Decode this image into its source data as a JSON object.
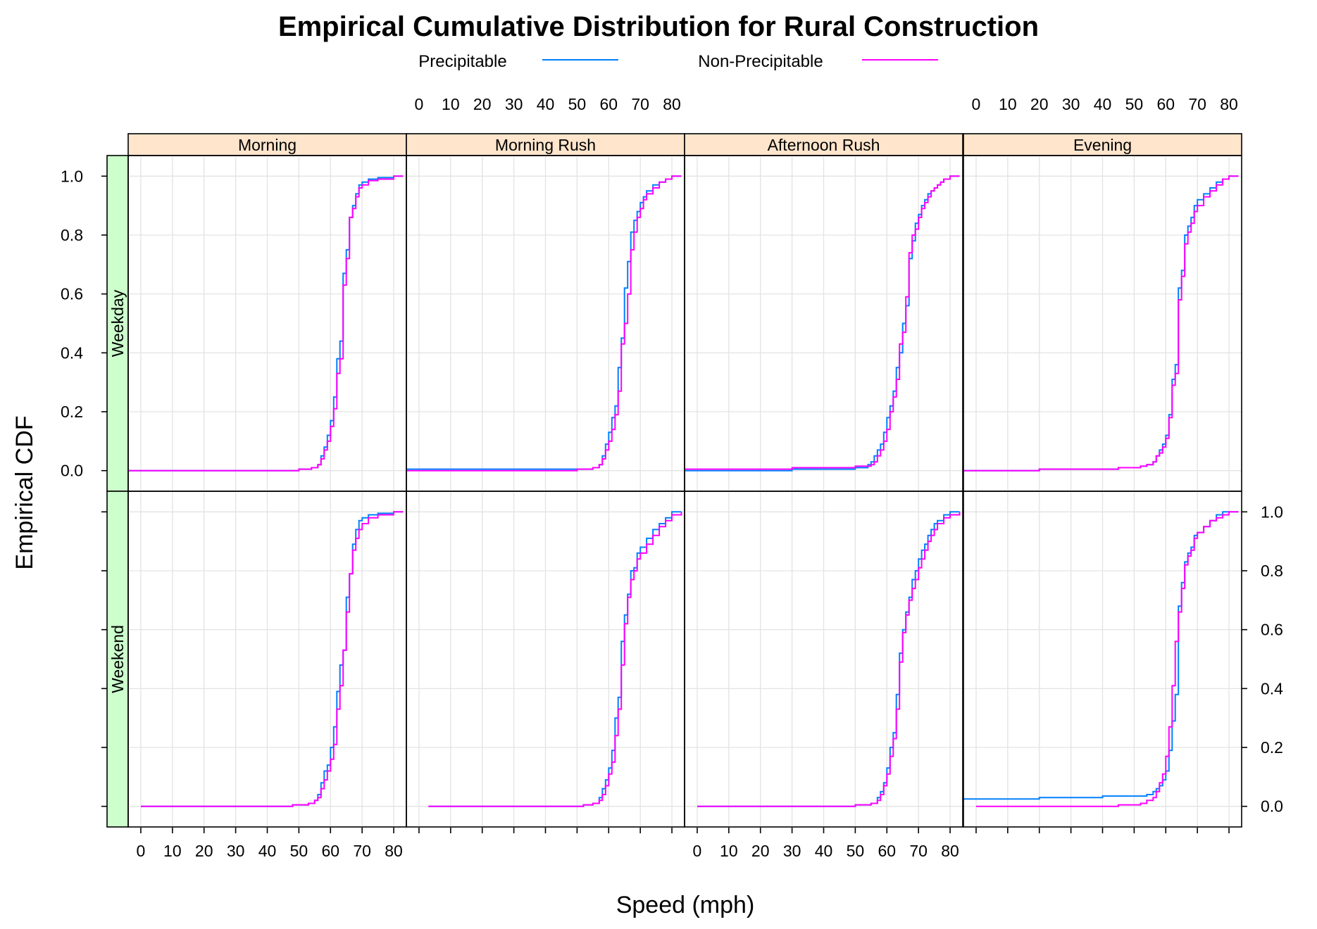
{
  "chart_data": {
    "type": "line",
    "subtype": "ecdf-step-trellis",
    "title": "Empirical Cumulative Distribution for Rural Construction",
    "xlabel": "Speed (mph)",
    "ylabel": "Empirical CDF",
    "xlim": [
      -4,
      84
    ],
    "ylim": [
      -0.07,
      1.07
    ],
    "xticks": [
      0,
      10,
      20,
      30,
      40,
      50,
      60,
      70,
      80
    ],
    "yticks": [
      0.0,
      0.2,
      0.4,
      0.6,
      0.8,
      1.0
    ],
    "grid": true,
    "legend_position": "top",
    "series": [
      {
        "name": "Precipitable",
        "color": "#0080ff"
      },
      {
        "name": "Non-Precipitable",
        "color": "#ff00ff"
      }
    ],
    "columns": [
      "Morning",
      "Morning Rush",
      "Afternoon Rush",
      "Evening"
    ],
    "rows": [
      "Weekday",
      "Weekend"
    ],
    "strip_colors": {
      "columns": "#ffe5cc",
      "rows": "#ccffcc"
    },
    "panels": [
      {
        "row": "Weekday",
        "column": "Morning",
        "series": [
          {
            "name": "Precipitable",
            "x": [
              -4,
              35,
              50,
              54,
              56,
              57,
              58,
              59,
              60,
              61,
              62,
              63,
              64,
              65,
              66,
              67,
              68,
              69,
              70,
              72,
              75,
              80,
              83
            ],
            "y": [
              0.0,
              0.0,
              0.005,
              0.01,
              0.02,
              0.05,
              0.08,
              0.12,
              0.17,
              0.25,
              0.38,
              0.44,
              0.67,
              0.75,
              0.86,
              0.9,
              0.94,
              0.97,
              0.98,
              0.99,
              0.995,
              1.0,
              1.0
            ]
          },
          {
            "name": "Non-Precipitable",
            "x": [
              -4,
              40,
              50,
              54,
              56,
              57,
              58,
              59,
              60,
              61,
              62,
              63,
              64,
              65,
              66,
              67,
              68,
              69,
              70,
              72,
              75,
              80,
              83
            ],
            "y": [
              0.0,
              0.0,
              0.005,
              0.01,
              0.02,
              0.04,
              0.07,
              0.1,
              0.15,
              0.21,
              0.33,
              0.38,
              0.63,
              0.72,
              0.86,
              0.89,
              0.93,
              0.96,
              0.97,
              0.985,
              0.99,
              1.0,
              1.0
            ]
          }
        ]
      },
      {
        "row": "Weekday",
        "column": "Morning Rush",
        "series": [
          {
            "name": "Precipitable",
            "x": [
              -4,
              50,
              55,
              57,
              58,
              59,
              60,
              61,
              62,
              63,
              64,
              65,
              66,
              67,
              68,
              69,
              70,
              71,
              72,
              74,
              76,
              78,
              80,
              83
            ],
            "y": [
              0.005,
              0.005,
              0.01,
              0.02,
              0.05,
              0.09,
              0.13,
              0.18,
              0.22,
              0.35,
              0.45,
              0.62,
              0.71,
              0.81,
              0.85,
              0.88,
              0.91,
              0.93,
              0.95,
              0.97,
              0.98,
              0.99,
              1.0,
              1.0
            ]
          },
          {
            "name": "Non-Precipitable",
            "x": [
              -4,
              50,
              55,
              57,
              58,
              59,
              60,
              61,
              62,
              63,
              64,
              65,
              66,
              67,
              68,
              69,
              70,
              71,
              72,
              74,
              76,
              78,
              80,
              83
            ],
            "y": [
              0.0,
              0.005,
              0.01,
              0.02,
              0.04,
              0.07,
              0.1,
              0.14,
              0.19,
              0.27,
              0.43,
              0.5,
              0.6,
              0.75,
              0.81,
              0.86,
              0.89,
              0.92,
              0.94,
              0.96,
              0.98,
              0.99,
              1.0,
              1.0
            ]
          }
        ]
      },
      {
        "row": "Weekday",
        "column": "Afternoon Rush",
        "series": [
          {
            "name": "Precipitable",
            "x": [
              -4,
              30,
              50,
              54,
              55,
              56,
              57,
              58,
              59,
              60,
              61,
              62,
              63,
              64,
              65,
              66,
              67,
              68,
              69,
              70,
              71,
              72,
              73,
              74,
              75,
              76,
              77,
              78,
              80,
              83
            ],
            "y": [
              0.0,
              0.005,
              0.01,
              0.02,
              0.03,
              0.05,
              0.07,
              0.09,
              0.13,
              0.18,
              0.22,
              0.27,
              0.35,
              0.4,
              0.5,
              0.56,
              0.72,
              0.78,
              0.84,
              0.87,
              0.9,
              0.92,
              0.94,
              0.95,
              0.96,
              0.97,
              0.98,
              0.99,
              1.0,
              1.0
            ]
          },
          {
            "name": "Non-Precipitable",
            "x": [
              -4,
              30,
              50,
              55,
              56,
              57,
              58,
              59,
              60,
              61,
              62,
              63,
              64,
              65,
              66,
              67,
              68,
              69,
              70,
              71,
              72,
              73,
              74,
              75,
              76,
              77,
              78,
              80,
              83
            ],
            "y": [
              0.005,
              0.01,
              0.015,
              0.02,
              0.03,
              0.05,
              0.07,
              0.1,
              0.14,
              0.2,
              0.25,
              0.31,
              0.43,
              0.47,
              0.59,
              0.74,
              0.8,
              0.82,
              0.86,
              0.89,
              0.91,
              0.93,
              0.95,
              0.96,
              0.97,
              0.98,
              0.99,
              1.0,
              1.0
            ]
          }
        ]
      },
      {
        "row": "Weekday",
        "column": "Evening",
        "series": [
          {
            "name": "Precipitable",
            "x": [
              -4,
              20,
              45,
              52,
              54,
              56,
              57,
              58,
              59,
              60,
              61,
              62,
              63,
              64,
              65,
              66,
              67,
              68,
              69,
              70,
              72,
              74,
              76,
              78,
              80,
              83
            ],
            "y": [
              0.0,
              0.005,
              0.01,
              0.015,
              0.02,
              0.03,
              0.05,
              0.07,
              0.09,
              0.12,
              0.19,
              0.31,
              0.36,
              0.62,
              0.68,
              0.8,
              0.83,
              0.86,
              0.9,
              0.92,
              0.94,
              0.96,
              0.98,
              0.99,
              1.0,
              1.0
            ]
          },
          {
            "name": "Non-Precipitable",
            "x": [
              -4,
              20,
              45,
              52,
              54,
              56,
              57,
              58,
              59,
              60,
              61,
              62,
              63,
              64,
              65,
              66,
              67,
              68,
              69,
              70,
              72,
              74,
              76,
              78,
              80,
              83
            ],
            "y": [
              0.0,
              0.005,
              0.01,
              0.015,
              0.02,
              0.03,
              0.05,
              0.06,
              0.08,
              0.11,
              0.18,
              0.29,
              0.33,
              0.58,
              0.66,
              0.77,
              0.81,
              0.84,
              0.88,
              0.9,
              0.93,
              0.95,
              0.97,
              0.99,
              1.0,
              1.0
            ]
          }
        ]
      },
      {
        "row": "Weekend",
        "column": "Morning",
        "series": [
          {
            "name": "Precipitable",
            "x": [
              0,
              35,
              48,
              53,
              55,
              56,
              57,
              58,
              59,
              60,
              61,
              62,
              63,
              64,
              65,
              66,
              67,
              68,
              69,
              70,
              72,
              75,
              80,
              83
            ],
            "y": [
              0.0,
              0.0,
              0.005,
              0.01,
              0.02,
              0.04,
              0.08,
              0.12,
              0.14,
              0.2,
              0.27,
              0.39,
              0.48,
              0.53,
              0.71,
              0.79,
              0.89,
              0.94,
              0.97,
              0.98,
              0.99,
              0.995,
              1.0,
              1.0
            ]
          },
          {
            "name": "Non-Precipitable",
            "x": [
              0,
              35,
              48,
              53,
              55,
              56,
              57,
              58,
              59,
              60,
              61,
              62,
              63,
              64,
              65,
              66,
              67,
              68,
              69,
              70,
              72,
              75,
              80,
              83
            ],
            "y": [
              0.0,
              0.0,
              0.005,
              0.01,
              0.02,
              0.03,
              0.06,
              0.09,
              0.12,
              0.16,
              0.21,
              0.33,
              0.41,
              0.53,
              0.66,
              0.79,
              0.87,
              0.91,
              0.94,
              0.96,
              0.98,
              0.99,
              1.0,
              1.0
            ]
          }
        ]
      },
      {
        "row": "Weekend",
        "column": "Morning Rush",
        "series": [
          {
            "name": "Precipitable",
            "x": [
              3,
              40,
              52,
              55,
              57,
              58,
              59,
              60,
              61,
              62,
              63,
              64,
              65,
              66,
              67,
              68,
              69,
              70,
              72,
              74,
              76,
              78,
              80,
              83
            ],
            "y": [
              0.0,
              0.0,
              0.005,
              0.01,
              0.03,
              0.06,
              0.09,
              0.13,
              0.19,
              0.3,
              0.37,
              0.56,
              0.65,
              0.72,
              0.8,
              0.81,
              0.86,
              0.88,
              0.91,
              0.94,
              0.96,
              0.98,
              1.0,
              1.0
            ]
          },
          {
            "name": "Non-Precipitable",
            "x": [
              3,
              40,
              52,
              55,
              57,
              58,
              59,
              60,
              61,
              62,
              63,
              64,
              65,
              66,
              67,
              68,
              69,
              70,
              72,
              74,
              76,
              78,
              80,
              83
            ],
            "y": [
              0.0,
              0.0,
              0.005,
              0.01,
              0.02,
              0.04,
              0.07,
              0.11,
              0.15,
              0.24,
              0.33,
              0.48,
              0.62,
              0.71,
              0.77,
              0.8,
              0.84,
              0.86,
              0.89,
              0.92,
              0.95,
              0.97,
              0.99,
              1.0
            ]
          }
        ]
      },
      {
        "row": "Weekend",
        "column": "Afternoon Rush",
        "series": [
          {
            "name": "Precipitable",
            "x": [
              0,
              35,
              50,
              55,
              57,
              58,
              59,
              60,
              61,
              62,
              63,
              64,
              65,
              66,
              67,
              68,
              69,
              70,
              71,
              72,
              73,
              74,
              75,
              76,
              78,
              80,
              83
            ],
            "y": [
              0.0,
              0.0,
              0.005,
              0.01,
              0.03,
              0.05,
              0.08,
              0.13,
              0.2,
              0.25,
              0.38,
              0.52,
              0.6,
              0.66,
              0.71,
              0.77,
              0.8,
              0.84,
              0.87,
              0.89,
              0.92,
              0.94,
              0.96,
              0.97,
              0.99,
              1.0,
              1.0
            ]
          },
          {
            "name": "Non-Precipitable",
            "x": [
              0,
              35,
              50,
              55,
              57,
              58,
              59,
              60,
              61,
              62,
              63,
              64,
              65,
              66,
              67,
              68,
              69,
              70,
              71,
              72,
              73,
              74,
              75,
              76,
              78,
              80,
              83
            ],
            "y": [
              0.0,
              0.0,
              0.005,
              0.01,
              0.02,
              0.04,
              0.07,
              0.11,
              0.17,
              0.23,
              0.33,
              0.49,
              0.59,
              0.65,
              0.7,
              0.74,
              0.77,
              0.81,
              0.84,
              0.87,
              0.9,
              0.92,
              0.94,
              0.96,
              0.98,
              0.99,
              1.0
            ]
          }
        ]
      },
      {
        "row": "Weekend",
        "column": "Evening",
        "series": [
          {
            "name": "Precipitable",
            "x": [
              -4,
              20,
              40,
              50,
              54,
              56,
              57,
              58,
              59,
              60,
              61,
              62,
              63,
              64,
              65,
              66,
              67,
              68,
              69,
              70,
              72,
              74,
              76,
              78,
              80,
              83
            ],
            "y": [
              0.025,
              0.03,
              0.035,
              0.035,
              0.04,
              0.05,
              0.06,
              0.07,
              0.09,
              0.12,
              0.19,
              0.29,
              0.38,
              0.68,
              0.76,
              0.83,
              0.86,
              0.88,
              0.92,
              0.93,
              0.95,
              0.97,
              0.99,
              1.0,
              1.0,
              1.0
            ]
          },
          {
            "name": "Non-Precipitable",
            "x": [
              0,
              30,
              45,
              52,
              54,
              56,
              57,
              58,
              59,
              60,
              61,
              62,
              63,
              64,
              65,
              66,
              67,
              68,
              69,
              70,
              72,
              74,
              76,
              78,
              80,
              83
            ],
            "y": [
              0.0,
              0.0,
              0.005,
              0.01,
              0.02,
              0.03,
              0.05,
              0.08,
              0.11,
              0.17,
              0.27,
              0.41,
              0.56,
              0.66,
              0.74,
              0.82,
              0.85,
              0.87,
              0.91,
              0.93,
              0.95,
              0.97,
              0.98,
              0.99,
              1.0,
              1.0
            ]
          }
        ]
      }
    ]
  }
}
